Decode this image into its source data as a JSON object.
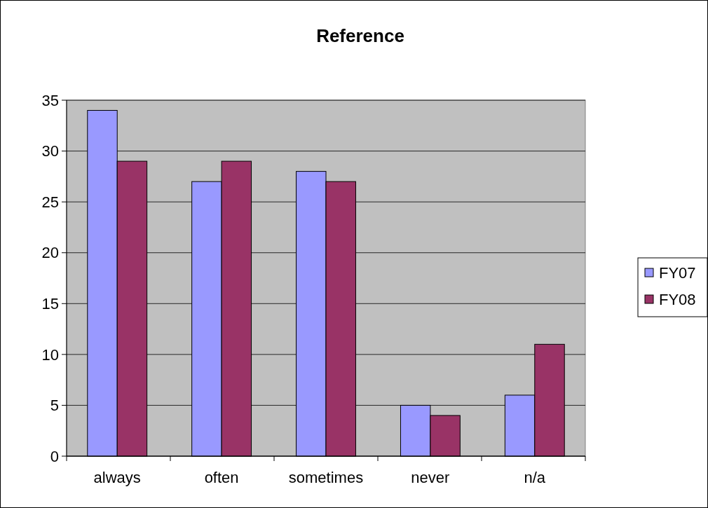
{
  "chart_data": {
    "type": "bar",
    "title": "Reference",
    "categories": [
      "always",
      "often",
      "sometimes",
      "never",
      "n/a"
    ],
    "series": [
      {
        "name": "FY07",
        "color": "#9999ff",
        "values": [
          34,
          27,
          28,
          5,
          6
        ]
      },
      {
        "name": "FY08",
        "color": "#993366",
        "values": [
          29,
          29,
          27,
          4,
          11
        ]
      }
    ],
    "ylim": [
      0,
      35
    ],
    "yticks": [
      0,
      5,
      10,
      15,
      20,
      25,
      30,
      35
    ],
    "grid": "y",
    "legend": "right"
  }
}
